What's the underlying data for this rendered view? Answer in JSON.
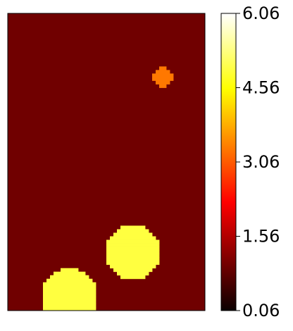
{
  "chart_data": {
    "type": "heatmap",
    "title": "",
    "xlabel": "",
    "ylabel": "",
    "colormap": "hot",
    "grid": false,
    "field": {
      "grid_cols": 56,
      "grid_rows": 84,
      "background_value": 0.8,
      "regions": [
        {
          "shape": "disk",
          "center_col": 44,
          "center_row": 18,
          "radius_cells": 2.9,
          "value": 3.6,
          "color": "#ff7800"
        },
        {
          "shape": "disk",
          "center_col": 35.5,
          "center_row": 67.5,
          "radius_cells": 7.7,
          "value": 5.2,
          "color": "#ffff40"
        },
        {
          "shape": "disk",
          "center_col": 17.5,
          "center_row": 80,
          "radius_cells": 8.0,
          "value": 5.2,
          "color": "#ffff40"
        }
      ]
    },
    "colorbar": {
      "min": 0.06,
      "max": 6.06,
      "ticks": [
        0.06,
        1.56,
        3.06,
        4.56,
        6.06
      ],
      "tick_labels": [
        "0.06",
        "1.56",
        "3.06",
        "4.56",
        "6.06"
      ]
    }
  }
}
